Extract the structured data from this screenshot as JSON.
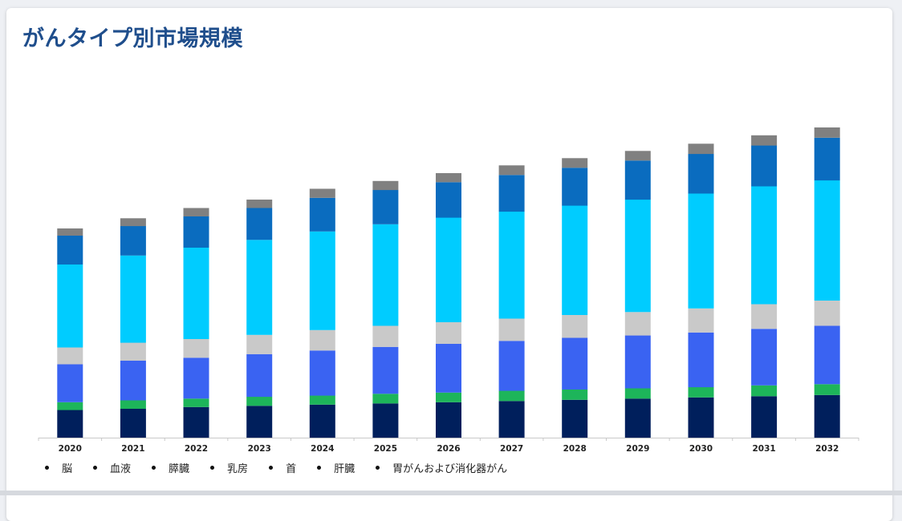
{
  "page": {
    "title": "がんタイプ別市場規模"
  },
  "colors": {
    "title": "#1f4e8c",
    "series": [
      "#001f5c",
      "#1db55a",
      "#3a63f2",
      "#c9c9c9",
      "#00ccff",
      "#0a6cbf",
      "#808080"
    ]
  },
  "chart_data": {
    "type": "bar",
    "stacked": true,
    "title": "がんタイプ別市場規模",
    "xlabel": "",
    "ylabel": "",
    "grid": false,
    "legend_placement": "bottom-left",
    "ylim": [
      0,
      50
    ],
    "categories": [
      "2020",
      "2021",
      "2022",
      "2023",
      "2024",
      "2025",
      "2026",
      "2027",
      "2028",
      "2029",
      "2030",
      "2031",
      "2032"
    ],
    "series": [
      {
        "name": "胃がんおよび消化器がん",
        "color": "#001f5c",
        "values": [
          4.6,
          4.8,
          5.1,
          5.3,
          5.5,
          5.7,
          5.9,
          6.1,
          6.3,
          6.5,
          6.7,
          6.9,
          7.1
        ]
      },
      {
        "name": "肝臓",
        "color": "#1db55a",
        "values": [
          1.3,
          1.4,
          1.4,
          1.5,
          1.5,
          1.6,
          1.6,
          1.7,
          1.7,
          1.7,
          1.7,
          1.8,
          1.8
        ]
      },
      {
        "name": "首",
        "color": "#3a63f2",
        "values": [
          6.3,
          6.6,
          6.8,
          7.1,
          7.5,
          7.8,
          8.1,
          8.3,
          8.6,
          8.8,
          9.1,
          9.4,
          9.7
        ]
      },
      {
        "name": "乳房",
        "color": "#c9c9c9",
        "values": [
          2.8,
          3.0,
          3.1,
          3.2,
          3.4,
          3.5,
          3.6,
          3.7,
          3.8,
          3.9,
          4.0,
          4.1,
          4.2
        ]
      },
      {
        "name": "膵臓",
        "color": "#00ccff",
        "values": [
          13.8,
          14.5,
          15.2,
          15.8,
          16.4,
          16.9,
          17.4,
          17.8,
          18.2,
          18.7,
          19.1,
          19.6,
          20.0
        ]
      },
      {
        "name": "血液",
        "color": "#0a6cbf",
        "values": [
          4.8,
          4.9,
          5.2,
          5.3,
          5.6,
          5.7,
          5.9,
          6.1,
          6.3,
          6.5,
          6.6,
          6.8,
          7.1
        ]
      },
      {
        "name": "脳",
        "color": "#808080",
        "values": [
          1.2,
          1.3,
          1.4,
          1.4,
          1.5,
          1.5,
          1.5,
          1.6,
          1.6,
          1.6,
          1.7,
          1.7,
          1.7
        ]
      }
    ]
  },
  "legend": {
    "items": [
      "脳",
      "血液",
      "膵臓",
      "乳房",
      "首",
      "肝臓",
      "胃がんおよび消化器がん"
    ]
  }
}
